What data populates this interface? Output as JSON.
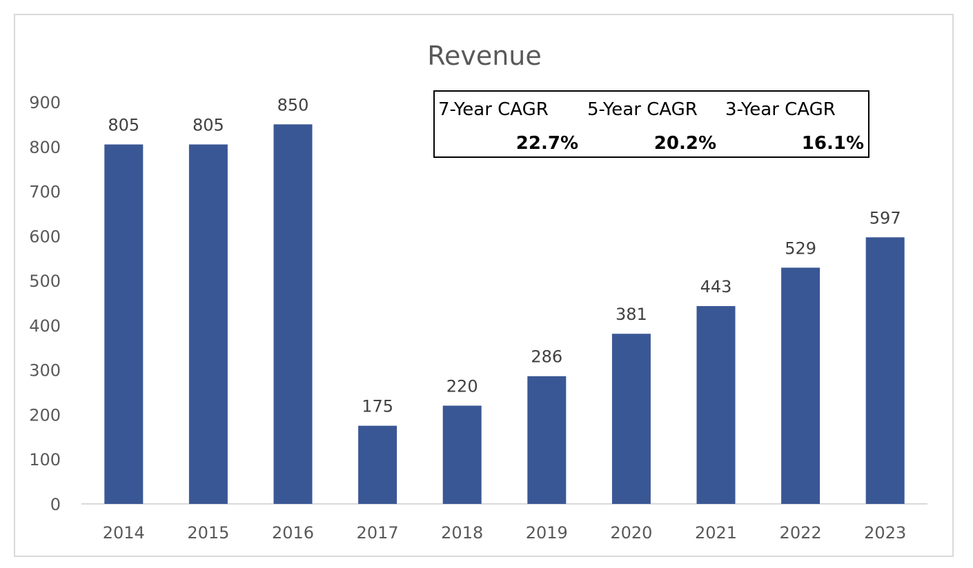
{
  "chart_data": {
    "type": "bar",
    "title": "Revenue",
    "categories": [
      "2014",
      "2015",
      "2016",
      "2017",
      "2018",
      "2019",
      "2020",
      "2021",
      "2022",
      "2023"
    ],
    "values": [
      805,
      805,
      850,
      175,
      220,
      286,
      381,
      443,
      529,
      597
    ],
    "value_labels": [
      "805",
      "805",
      "850",
      "175",
      "220",
      "286",
      "381",
      "443",
      "529",
      "597"
    ],
    "ylim": [
      0,
      900
    ],
    "yticks": [
      "0",
      "100",
      "200",
      "300",
      "400",
      "500",
      "600",
      "700",
      "800",
      "900"
    ],
    "xlabel": "",
    "ylabel": "",
    "grid": false,
    "legend": "none",
    "bar_color": "#3A5795"
  },
  "cagr_table": {
    "headers": [
      "7-Year CAGR",
      "5-Year CAGR",
      "3-Year CAGR"
    ],
    "values": [
      "22.7%",
      "20.2%",
      "16.1%"
    ]
  }
}
